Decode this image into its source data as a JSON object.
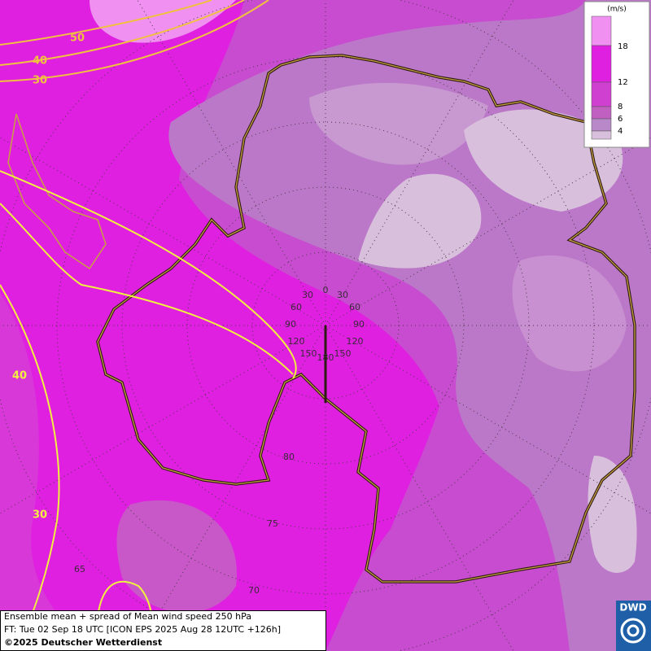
{
  "legend": {
    "unit": "(m/s)",
    "ticks": [
      18,
      12,
      8,
      6,
      4
    ]
  },
  "contour_labels": [
    50,
    40,
    30,
    40,
    30
  ],
  "grid_labels": {
    "longitude": [
      0,
      30,
      30,
      60,
      60,
      90,
      90,
      120,
      120,
      150,
      150,
      180
    ],
    "latitude": [
      80,
      75,
      70,
      65
    ]
  },
  "footer": {
    "title": "Ensemble mean + spread of Mean wind speed 250 hPa",
    "forecast": "FT: Tue 02 Sep 18 UTC [ICON EPS 2025 Aug 28 12UTC +126h]",
    "copyright": "©2025 Deutscher Wetterdienst"
  },
  "logo": "DWD"
}
